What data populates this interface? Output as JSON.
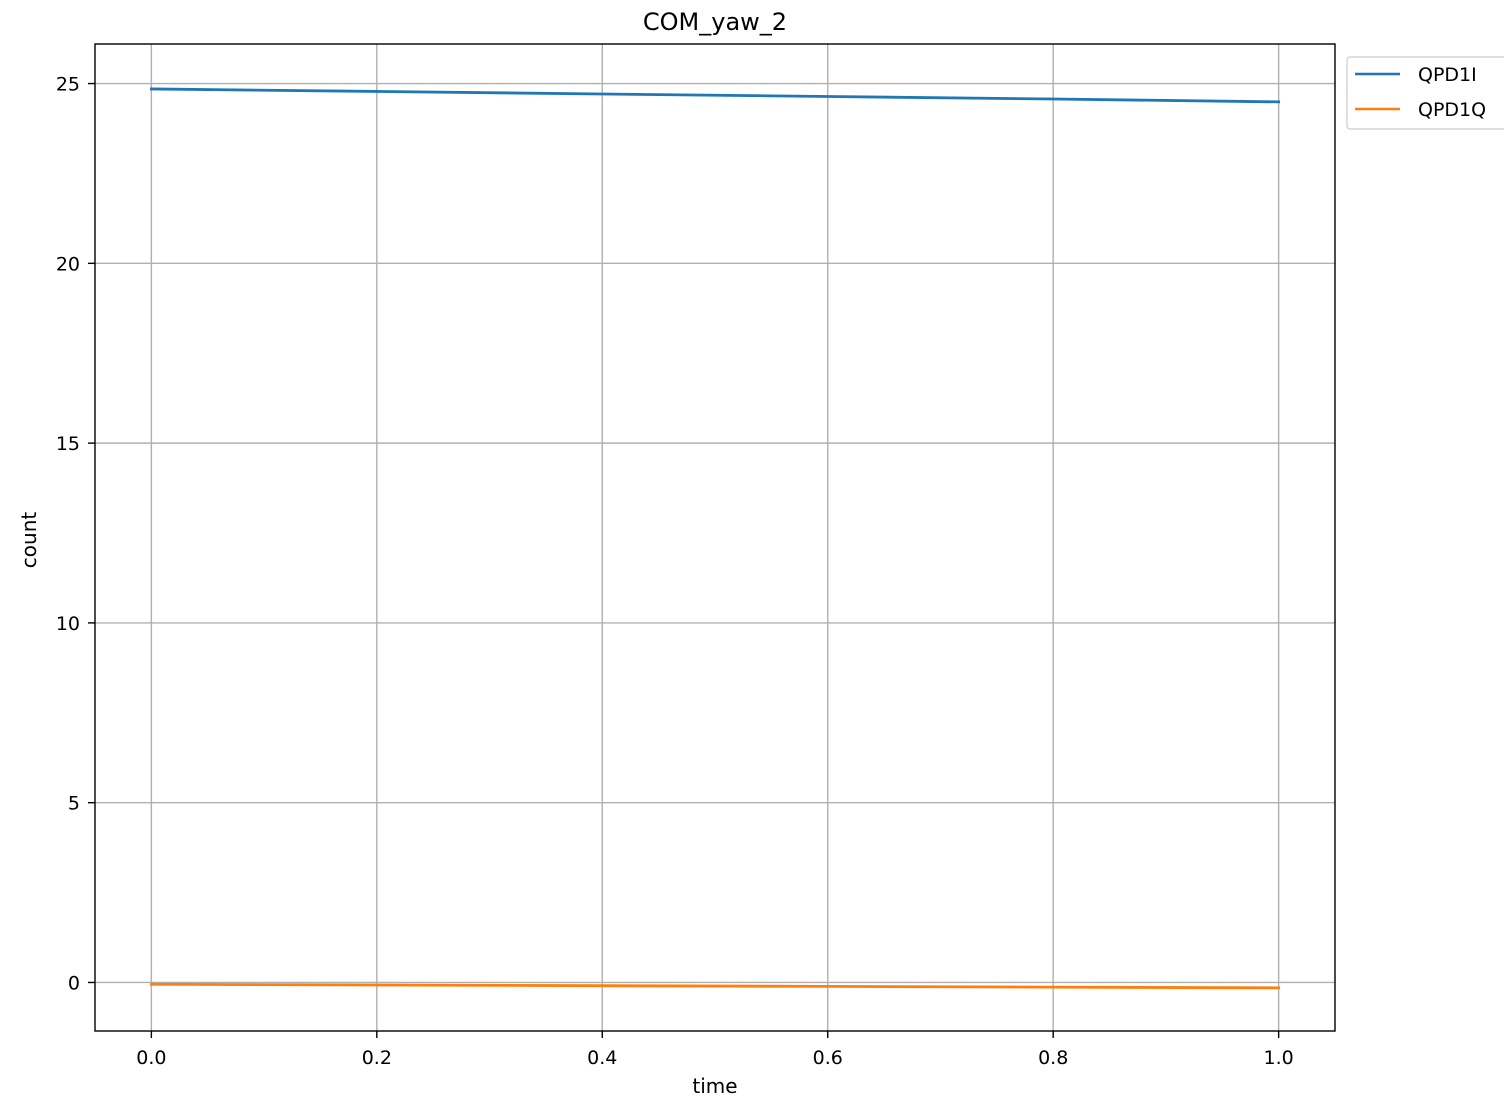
{
  "chart_data": {
    "type": "line",
    "title": "COM_yaw_2",
    "xlabel": "time",
    "ylabel": "count",
    "xlim": [
      -0.05,
      1.05
    ],
    "ylim": [
      -1.35,
      26.1
    ],
    "xticks": [
      0.0,
      0.2,
      0.4,
      0.6,
      0.8,
      1.0
    ],
    "xtick_labels": [
      "0.0",
      "0.2",
      "0.4",
      "0.6",
      "0.8",
      "1.0"
    ],
    "yticks": [
      0,
      5,
      10,
      15,
      20,
      25
    ],
    "ytick_labels": [
      "0",
      "5",
      "10",
      "15",
      "20",
      "25"
    ],
    "grid": true,
    "legend_position": "outside top-right",
    "series": [
      {
        "name": "QPD1I",
        "color": "#1f77b4",
        "x": [
          0.0,
          0.2,
          0.4,
          0.6,
          0.8,
          1.0
        ],
        "values": [
          24.85,
          24.78,
          24.71,
          24.64,
          24.57,
          24.49
        ]
      },
      {
        "name": "QPD1Q",
        "color": "#ff7f0e",
        "x": [
          0.0,
          0.2,
          0.4,
          0.6,
          0.8,
          1.0
        ],
        "values": [
          -0.05,
          -0.07,
          -0.09,
          -0.11,
          -0.13,
          -0.15
        ]
      }
    ]
  }
}
